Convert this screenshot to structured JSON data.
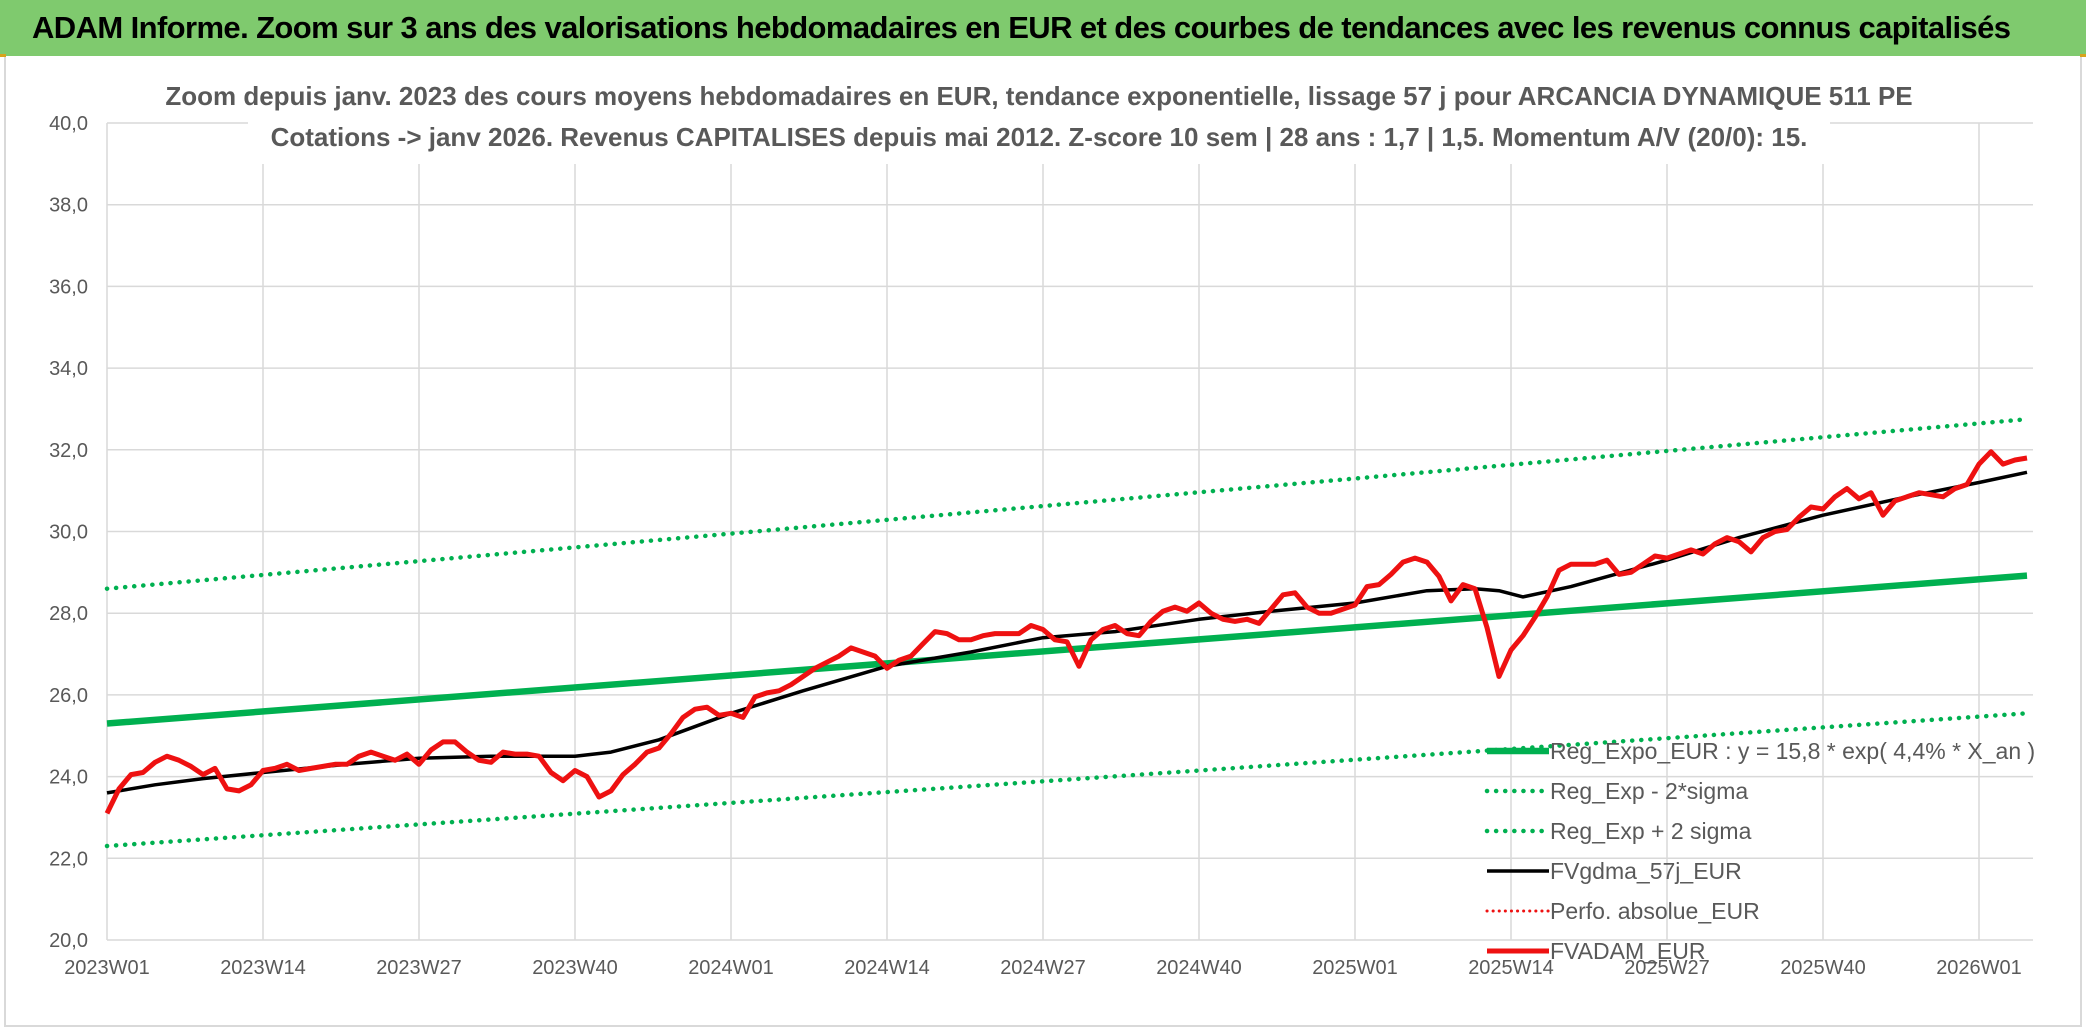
{
  "banner": {
    "title": "ADAM Informe. Zoom sur 3 ans des valorisations hebdomadaires en EUR et des courbes de tendances avec les revenus connus capitalisés"
  },
  "colors": {
    "banner": "#7fca6e",
    "trend": "#00b050",
    "band": "#00b050",
    "smooth": "#000000",
    "price": "#ee1111",
    "perfo": "#ee1111",
    "grid": "#d9d9d9",
    "axis_text": "#595959"
  },
  "chart_data": {
    "type": "line",
    "title_line1": "Zoom depuis janv. 2023 des cours moyens hebdomadaires en EUR, tendance exponentielle, lissage 57 j pour ARCANCIA DYNAMIQUE 511 PE",
    "title_line2": "Cotations -> janv 2026. Revenus CAPITALISES depuis mai 2012. Z-score 10 sem | 28 ans : 1,7 | 1,5. Momentum A/V (20/0): 15.",
    "xlabel": "",
    "ylabel": "",
    "ylim": [
      20,
      40
    ],
    "y_ticks": [
      "20,0",
      "22,0",
      "24,0",
      "26,0",
      "28,0",
      "30,0",
      "32,0",
      "34,0",
      "36,0",
      "38,0",
      "40,0"
    ],
    "x_ticks": [
      {
        "label": "2023W01",
        "week": 0
      },
      {
        "label": "2023W14",
        "week": 13
      },
      {
        "label": "2023W27",
        "week": 26
      },
      {
        "label": "2023W40",
        "week": 39
      },
      {
        "label": "2024W01",
        "week": 52
      },
      {
        "label": "2024W14",
        "week": 65
      },
      {
        "label": "2024W27",
        "week": 78
      },
      {
        "label": "2024W40",
        "week": 91
      },
      {
        "label": "2025W01",
        "week": 104
      },
      {
        "label": "2025W14",
        "week": 117
      },
      {
        "label": "2025W27",
        "week": 130
      },
      {
        "label": "2025W40",
        "week": 143
      },
      {
        "label": "2026W01",
        "week": 156
      }
    ],
    "x_range_weeks": [
      0,
      160.5
    ],
    "grid": true,
    "legend_position": "lower-right",
    "series": [
      {
        "name": "Reg_Expo_EUR : y = 15,8 * exp( 4,4% *  X_an )",
        "style": "trend",
        "weeks": [
          0,
          160
        ],
        "values": [
          25.3,
          28.92
        ]
      },
      {
        "name": "Reg_Exp - 2*sigma",
        "style": "band",
        "weeks": [
          0,
          160
        ],
        "values": [
          22.3,
          25.55
        ]
      },
      {
        "name": "Reg_Exp + 2 sigma",
        "style": "band",
        "weeks": [
          0,
          160
        ],
        "values": [
          28.6,
          32.75
        ]
      },
      {
        "name": "FVgdma_57j_EUR",
        "style": "smooth",
        "weeks": [
          0,
          4,
          8,
          13,
          20,
          26,
          32,
          39,
          42,
          46,
          52,
          58,
          65,
          72,
          78,
          84,
          91,
          97,
          104,
          110,
          114,
          116,
          118,
          122,
          130,
          136,
          143,
          150,
          156,
          160
        ],
        "values": [
          23.6,
          23.8,
          23.95,
          24.1,
          24.3,
          24.45,
          24.5,
          24.5,
          24.6,
          24.9,
          25.55,
          26.1,
          26.7,
          27.05,
          27.4,
          27.55,
          27.85,
          28.05,
          28.25,
          28.55,
          28.6,
          28.55,
          28.4,
          28.65,
          29.3,
          29.85,
          30.4,
          30.85,
          31.2,
          31.45
        ]
      },
      {
        "name": "Perfo. absolue_EUR",
        "style": "perfo",
        "weeks": [],
        "values": []
      },
      {
        "name": "FVADAM_EUR",
        "style": "price",
        "weeks": [
          0,
          1,
          2,
          3,
          4,
          5,
          6,
          7,
          8,
          9,
          10,
          11,
          12,
          13,
          14,
          15,
          16,
          17,
          18,
          19,
          20,
          21,
          22,
          23,
          24,
          25,
          26,
          27,
          28,
          29,
          30,
          31,
          32,
          33,
          34,
          35,
          36,
          37,
          38,
          39,
          40,
          41,
          42,
          43,
          44,
          45,
          46,
          47,
          48,
          49,
          50,
          51,
          52,
          53,
          54,
          55,
          56,
          57,
          58,
          59,
          60,
          61,
          62,
          63,
          64,
          65,
          66,
          67,
          68,
          69,
          70,
          71,
          72,
          73,
          74,
          75,
          76,
          77,
          78,
          79,
          80,
          81,
          82,
          83,
          84,
          85,
          86,
          87,
          88,
          89,
          90,
          91,
          92,
          93,
          94,
          95,
          96,
          97,
          98,
          99,
          100,
          101,
          102,
          103,
          104,
          105,
          106,
          107,
          108,
          109,
          110,
          111,
          112,
          113,
          114,
          115,
          116,
          117,
          118,
          119,
          120,
          121,
          122,
          123,
          124,
          125,
          126,
          127,
          128,
          129,
          130,
          131,
          132,
          133,
          134,
          135,
          136,
          137,
          138,
          139,
          140,
          141,
          142,
          143,
          144,
          145,
          146,
          147,
          148,
          149,
          150,
          151,
          152,
          153,
          154,
          155,
          156,
          157,
          158,
          159,
          160
        ],
        "values": [
          23.1,
          23.7,
          24.05,
          24.1,
          24.35,
          24.5,
          24.4,
          24.25,
          24.05,
          24.2,
          23.7,
          23.65,
          23.8,
          24.15,
          24.2,
          24.3,
          24.15,
          24.2,
          24.25,
          24.3,
          24.3,
          24.5,
          24.6,
          24.5,
          24.4,
          24.55,
          24.3,
          24.65,
          24.85,
          24.85,
          24.6,
          24.4,
          24.35,
          24.6,
          24.55,
          24.55,
          24.5,
          24.1,
          23.9,
          24.15,
          24.0,
          23.5,
          23.65,
          24.05,
          24.3,
          24.6,
          24.7,
          25.05,
          25.45,
          25.65,
          25.7,
          25.5,
          25.55,
          25.45,
          25.95,
          26.05,
          26.1,
          26.25,
          26.45,
          26.65,
          26.8,
          26.95,
          27.15,
          27.05,
          26.95,
          26.65,
          26.85,
          26.95,
          27.25,
          27.55,
          27.5,
          27.35,
          27.35,
          27.45,
          27.5,
          27.5,
          27.5,
          27.7,
          27.6,
          27.35,
          27.3,
          26.7,
          27.35,
          27.6,
          27.7,
          27.5,
          27.45,
          27.8,
          28.05,
          28.15,
          28.05,
          28.25,
          28.0,
          27.85,
          27.8,
          27.85,
          27.75,
          28.1,
          28.45,
          28.5,
          28.15,
          28.0,
          28.0,
          28.1,
          28.2,
          28.65,
          28.7,
          28.95,
          29.25,
          29.35,
          29.25,
          28.9,
          28.3,
          28.7,
          28.6,
          27.65,
          26.45,
          27.1,
          27.45,
          27.9,
          28.4,
          29.05,
          29.2,
          29.2,
          29.2,
          29.3,
          28.95,
          29.0,
          29.2,
          29.4,
          29.35,
          29.45,
          29.55,
          29.45,
          29.7,
          29.85,
          29.75,
          29.5,
          29.85,
          30.0,
          30.05,
          30.35,
          30.6,
          30.55,
          30.85,
          31.05,
          30.8,
          30.95,
          30.4,
          30.75,
          30.85,
          30.95,
          30.9,
          30.85,
          31.05,
          31.15,
          31.65,
          31.95,
          31.65,
          31.75,
          31.8
        ]
      }
    ]
  }
}
